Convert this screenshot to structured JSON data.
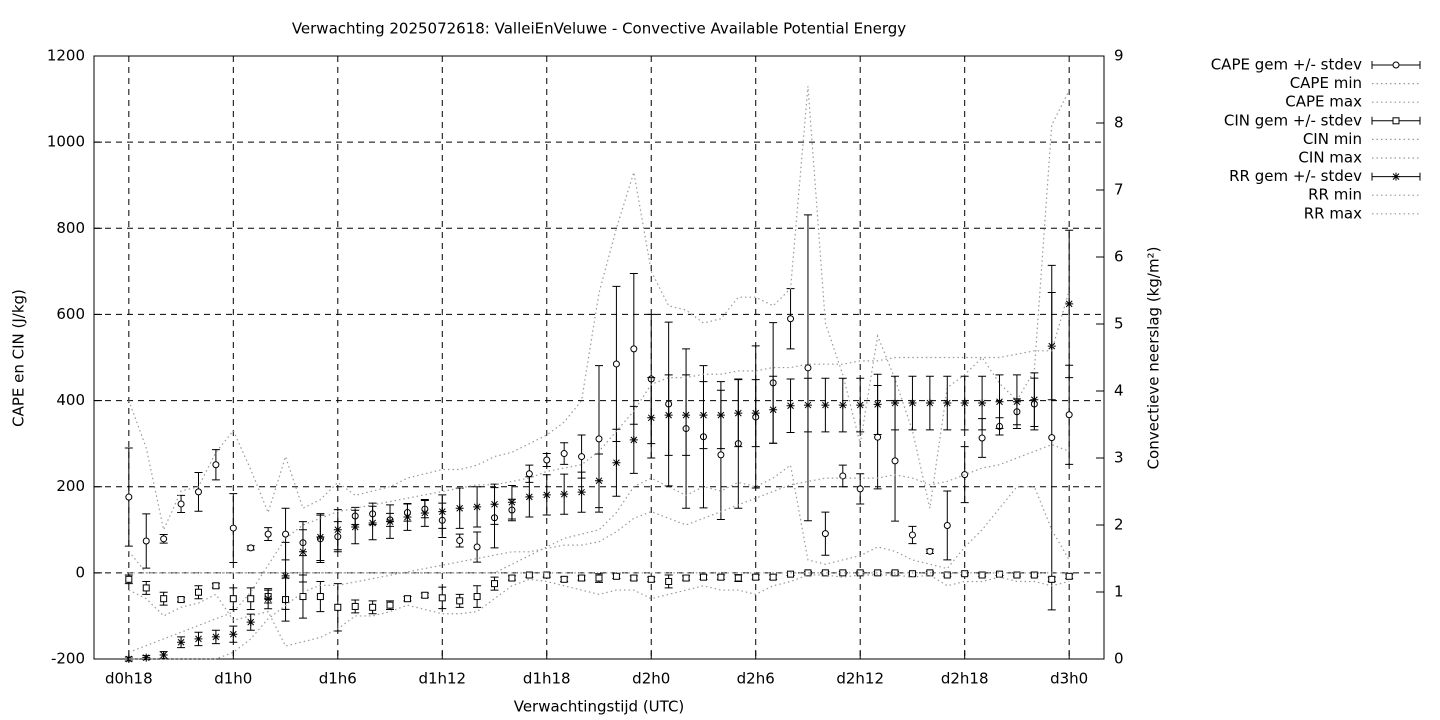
{
  "chart_data": {
    "type": "errorbar",
    "title": "Verwachting 2025072618: ValleiEnVeluwe - Convective Available Potential Energy",
    "x_label": "Verwachtingstijd (UTC)",
    "y_label": "CAPE en CIN (J/kg)",
    "y2_label": "Convectieve neerslag (kg/m²)",
    "xlim": [
      16,
      74
    ],
    "xticks": [
      {
        "value": 18,
        "label": "d0h18"
      },
      {
        "value": 24,
        "label": "d1h0"
      },
      {
        "value": 30,
        "label": "d1h6"
      },
      {
        "value": 36,
        "label": "d1h12"
      },
      {
        "value": 42,
        "label": "d1h18"
      },
      {
        "value": 48,
        "label": "d2h0"
      },
      {
        "value": 54,
        "label": "d2h6"
      },
      {
        "value": 60,
        "label": "d2h12"
      },
      {
        "value": 66,
        "label": "d2h18"
      },
      {
        "value": 72,
        "label": "d3h0"
      }
    ],
    "ylim": [
      -200,
      1200
    ],
    "yticks": [
      -200,
      0,
      200,
      400,
      600,
      800,
      1000,
      1200
    ],
    "y2lim": [
      0,
      9
    ],
    "y2ticks": [
      0,
      1,
      2,
      3,
      4,
      5,
      6,
      7,
      8,
      9
    ],
    "grid": true,
    "legend": "outside-right",
    "x": [
      18,
      19,
      20,
      21,
      22,
      23,
      24,
      25,
      26,
      27,
      28,
      29,
      30,
      31,
      32,
      33,
      34,
      35,
      36,
      37,
      38,
      39,
      40,
      41,
      42,
      43,
      44,
      45,
      46,
      47,
      48,
      49,
      50,
      51,
      52,
      53,
      54,
      55,
      56,
      57,
      58,
      59,
      60,
      61,
      62,
      63,
      64,
      65,
      66,
      67,
      68,
      69,
      70,
      71,
      72
    ],
    "series": [
      {
        "name": "CAPE gem +/- stdev",
        "color": "#000000",
        "marker": "circle",
        "values": [
          176,
          74,
          79,
          160,
          188,
          251,
          104,
          58,
          90,
          90,
          70,
          79,
          84,
          132,
          137,
          123,
          140,
          148,
          122,
          75,
          60,
          128,
          146,
          230,
          262,
          277,
          270,
          311,
          485,
          520,
          450,
          392,
          335,
          316,
          274,
          300,
          362,
          441,
          590,
          476,
          91,
          225,
          195,
          315,
          260,
          88,
          50,
          110,
          228,
          313,
          340,
          374,
          392,
          314,
          367
        ],
        "errors": [
          114,
          63,
          10,
          20,
          45,
          35,
          80,
          5,
          15,
          60,
          30,
          55,
          35,
          20,
          25,
          15,
          20,
          20,
          40,
          15,
          35,
          70,
          25,
          20,
          15,
          25,
          50,
          170,
          180,
          175,
          150,
          190,
          185,
          165,
          150,
          150,
          165,
          140,
          70,
          355,
          50,
          25,
          35,
          120,
          140,
          20,
          5,
          80,
          65,
          45,
          20,
          30,
          60,
          400,
          115
        ]
      },
      {
        "name": "CAPE min",
        "color": "#999999",
        "dash": "dotted",
        "values": [
          50,
          0,
          0,
          0,
          0,
          0,
          0,
          0,
          0,
          0,
          0,
          0,
          0,
          0,
          0,
          0,
          0,
          0,
          0,
          0,
          0,
          0,
          20,
          40,
          60,
          80,
          90,
          100,
          140,
          200,
          220,
          200,
          180,
          200,
          190,
          210,
          200,
          220,
          250,
          30,
          20,
          30,
          40,
          60,
          50,
          30,
          20,
          10,
          60,
          100,
          150,
          200,
          200,
          100,
          30
        ]
      },
      {
        "name": "CAPE max",
        "color": "#999999",
        "dash": "dotted",
        "values": [
          400,
          290,
          100,
          190,
          200,
          280,
          330,
          240,
          140,
          270,
          150,
          170,
          210,
          180,
          190,
          200,
          220,
          230,
          240,
          240,
          250,
          270,
          280,
          300,
          320,
          350,
          400,
          650,
          800,
          930,
          700,
          620,
          610,
          580,
          590,
          640,
          640,
          620,
          660,
          1130,
          580,
          460,
          300,
          550,
          450,
          330,
          150,
          430,
          460,
          500,
          440,
          400,
          470,
          1040,
          1120
        ]
      },
      {
        "name": "CIN gem +/- stdev",
        "color": "#000000",
        "marker": "square",
        "values": [
          -15,
          -35,
          -60,
          -62,
          -45,
          -30,
          -60,
          -60,
          -55,
          -62,
          -55,
          -55,
          -80,
          -78,
          -80,
          -75,
          -60,
          -52,
          -58,
          -65,
          -55,
          -25,
          -12,
          -5,
          -5,
          -15,
          -12,
          -12,
          -8,
          -12,
          -15,
          -20,
          -12,
          -10,
          -10,
          -12,
          -10,
          -10,
          -3,
          0,
          0,
          0,
          0,
          0,
          0,
          -2,
          0,
          -5,
          -2,
          -5,
          -3,
          -5,
          -5,
          -15,
          -8
        ],
        "errors": [
          10,
          15,
          15,
          5,
          15,
          5,
          25,
          25,
          15,
          50,
          50,
          35,
          55,
          15,
          15,
          10,
          5,
          5,
          25,
          15,
          25,
          15,
          5,
          5,
          5,
          5,
          5,
          10,
          5,
          5,
          5,
          15,
          5,
          5,
          5,
          8,
          5,
          5,
          3,
          3,
          3,
          3,
          3,
          3,
          3,
          3,
          3,
          3,
          3,
          3,
          3,
          3,
          3,
          5,
          5
        ]
      },
      {
        "name": "CIN min",
        "color": "#555555",
        "dash": "dotted",
        "values": [
          -40,
          -60,
          -100,
          -80,
          -70,
          -50,
          -110,
          -100,
          -90,
          -170,
          -160,
          -150,
          -130,
          -100,
          -100,
          -90,
          -75,
          -85,
          -95,
          -95,
          -90,
          -60,
          -30,
          -15,
          -20,
          -30,
          -40,
          -50,
          -40,
          -40,
          -60,
          -50,
          -40,
          -30,
          -40,
          -40,
          -50,
          -30,
          -20,
          -5,
          -5,
          -10,
          -5,
          -5,
          -5,
          -10,
          -5,
          -30,
          -20,
          -20,
          -10,
          -20,
          -20,
          -30,
          -20
        ]
      },
      {
        "name": "CIN max",
        "color": "#999999",
        "dash": "dotted",
        "values": [
          0,
          0,
          0,
          0,
          0,
          0,
          0,
          0,
          0,
          0,
          0,
          0,
          0,
          0,
          0,
          0,
          0,
          0,
          0,
          0,
          0,
          0,
          0,
          0,
          0,
          0,
          0,
          0,
          0,
          0,
          0,
          0,
          0,
          0,
          0,
          0,
          0,
          0,
          0,
          0,
          0,
          0,
          0,
          0,
          0,
          0,
          0,
          0,
          0,
          0,
          0,
          0,
          0,
          0,
          0
        ]
      },
      {
        "name": "RR gem +/- stdev",
        "color": "#000000",
        "marker": "star",
        "axis": "y2",
        "values": [
          0,
          0.02,
          0.06,
          0.25,
          0.3,
          0.33,
          0.37,
          0.55,
          0.9,
          1.24,
          1.6,
          1.82,
          1.93,
          1.97,
          2.03,
          2.05,
          2.12,
          2.18,
          2.2,
          2.25,
          2.27,
          2.31,
          2.34,
          2.42,
          2.45,
          2.46,
          2.49,
          2.66,
          2.93,
          3.27,
          3.6,
          3.64,
          3.64,
          3.64,
          3.64,
          3.67,
          3.67,
          3.72,
          3.78,
          3.79,
          3.79,
          3.79,
          3.79,
          3.8,
          3.82,
          3.82,
          3.82,
          3.82,
          3.82,
          3.82,
          3.84,
          3.84,
          3.87,
          4.67,
          5.3
        ],
        "errors": [
          0.03,
          0.03,
          0.05,
          0.08,
          0.1,
          0.1,
          0.12,
          0.12,
          0.15,
          0.5,
          0.45,
          0.35,
          0.3,
          0.25,
          0.25,
          0.25,
          0.2,
          0.2,
          0.25,
          0.3,
          0.3,
          0.3,
          0.25,
          0.3,
          0.3,
          0.3,
          0.3,
          0.4,
          0.5,
          0.5,
          0.6,
          0.6,
          0.6,
          0.5,
          0.5,
          0.5,
          0.5,
          0.5,
          0.4,
          0.4,
          0.4,
          0.4,
          0.4,
          0.45,
          0.4,
          0.4,
          0.4,
          0.4,
          0.4,
          0.4,
          0.4,
          0.4,
          0.4,
          0.8,
          1.1
        ]
      },
      {
        "name": "RR min",
        "color": "#999999",
        "dash": "dotted",
        "axis": "y2",
        "values": [
          0,
          0,
          0,
          0,
          0,
          0,
          0.1,
          0.3,
          0.6,
          0.8,
          1.0,
          1.1,
          1.1,
          1.15,
          1.2,
          1.25,
          1.3,
          1.35,
          1.4,
          1.45,
          1.5,
          1.55,
          1.6,
          1.6,
          1.65,
          1.7,
          1.7,
          1.75,
          1.9,
          2.1,
          2.2,
          2.1,
          2.0,
          2.1,
          2.2,
          2.3,
          2.4,
          2.5,
          2.6,
          2.65,
          2.7,
          2.7,
          2.7,
          2.7,
          2.75,
          2.7,
          2.6,
          2.65,
          2.75,
          2.85,
          2.9,
          3.0,
          3.1,
          3.2,
          3.1
        ]
      },
      {
        "name": "RR max",
        "color": "#999999",
        "dash": "dotted",
        "axis": "y2",
        "values": [
          0.1,
          0.2,
          0.3,
          0.4,
          0.5,
          0.6,
          0.7,
          1.0,
          1.4,
          1.8,
          2.0,
          2.1,
          2.2,
          2.25,
          2.3,
          2.35,
          2.4,
          2.45,
          2.5,
          2.55,
          2.6,
          2.6,
          2.65,
          2.7,
          2.8,
          2.85,
          2.9,
          3.1,
          3.4,
          3.7,
          4.1,
          4.2,
          4.2,
          4.25,
          4.25,
          4.3,
          4.3,
          4.35,
          4.35,
          4.4,
          4.4,
          4.4,
          4.45,
          4.45,
          4.5,
          4.5,
          4.5,
          4.5,
          4.5,
          4.5,
          4.5,
          4.55,
          4.6,
          4.6,
          5.5
        ]
      }
    ]
  }
}
